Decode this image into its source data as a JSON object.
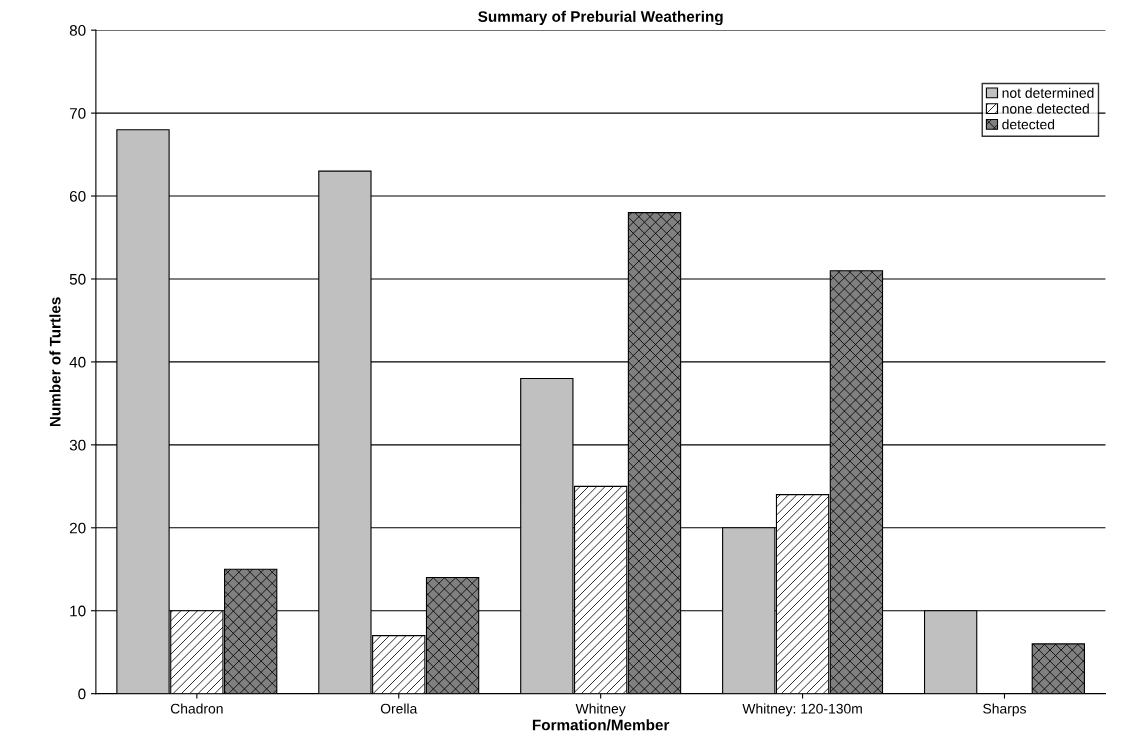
{
  "chart_data": {
    "type": "bar",
    "title": "Summary of Preburial Weathering",
    "xlabel": "Formation/Member",
    "ylabel": "Number of Turtles",
    "categories": [
      "Chadron",
      "Orella",
      "Whitney",
      "Whitney: 120-130m",
      "Sharps"
    ],
    "series": [
      {
        "name": "not determined",
        "color": "#c0c0c0",
        "values": [
          68,
          63,
          38,
          20,
          10
        ]
      },
      {
        "name": "none detected",
        "color": "#ffffff",
        "values": [
          10,
          7,
          25,
          24,
          null
        ]
      },
      {
        "name": "detected",
        "color": "#808080",
        "values": [
          15,
          14,
          58,
          51,
          6
        ]
      }
    ],
    "ylim": [
      0,
      80
    ],
    "yticks": [
      0,
      10,
      20,
      30,
      40,
      50,
      60,
      70,
      80
    ],
    "grid": "y",
    "legend": "top right"
  }
}
